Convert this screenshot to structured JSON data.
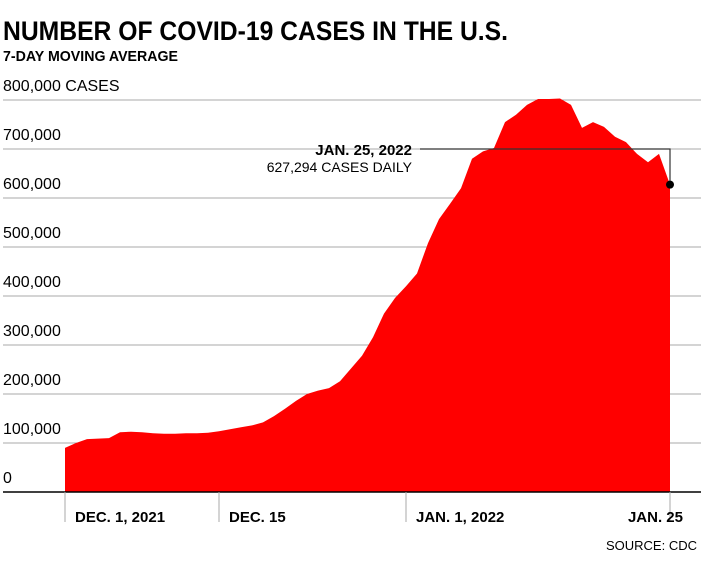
{
  "chart_data": {
    "type": "area",
    "title": "NUMBER OF COVID-19 CASES IN THE U.S.",
    "subtitle": "7-DAY MOVING AVERAGE",
    "ylabel": "",
    "y_top_label": "800,000 CASES",
    "ylim": [
      0,
      800000
    ],
    "y_ticks": [
      0,
      100000,
      200000,
      300000,
      400000,
      500000,
      600000,
      700000,
      800000
    ],
    "y_tick_labels": [
      "0",
      "100,000",
      "200,000",
      "300,000",
      "400,000",
      "500,000",
      "600,000",
      "700,000",
      "800,000 CASES"
    ],
    "grid": true,
    "x_start": "2021-12-01",
    "x_end": "2022-01-25",
    "x_ticks": [
      {
        "date": "2021-12-01",
        "label": "DEC. 1, 2021"
      },
      {
        "date": "2021-12-15",
        "label": "DEC. 15"
      },
      {
        "date": "2022-01-01",
        "label": "JAN. 1, 2022"
      },
      {
        "date": "2022-01-25",
        "label": "JAN. 25"
      }
    ],
    "series": [
      {
        "color": "#ff0000",
        "values": [
          90000,
          100000,
          108000,
          109000,
          110000,
          122000,
          123000,
          122000,
          120000,
          119000,
          119000,
          120000,
          120000,
          121000,
          124000,
          128000,
          132000,
          136000,
          142000,
          155000,
          170000,
          186000,
          200000,
          207000,
          212000,
          226000,
          252000,
          278000,
          316000,
          364000,
          396000,
          420000,
          446000,
          508000,
          557000,
          588000,
          620000,
          680000,
          695000,
          702000,
          755000,
          770000,
          790000,
          802000,
          802000,
          803000,
          790000,
          743000,
          755000,
          745000,
          725000,
          714000,
          690000,
          673000,
          690000,
          627294
        ]
      }
    ],
    "annotation": {
      "date": "2022-01-25",
      "value": 627294,
      "line1": "JAN. 25, 2022",
      "line2": "627,294 CASES DAILY"
    },
    "source": "SOURCE: CDC"
  }
}
